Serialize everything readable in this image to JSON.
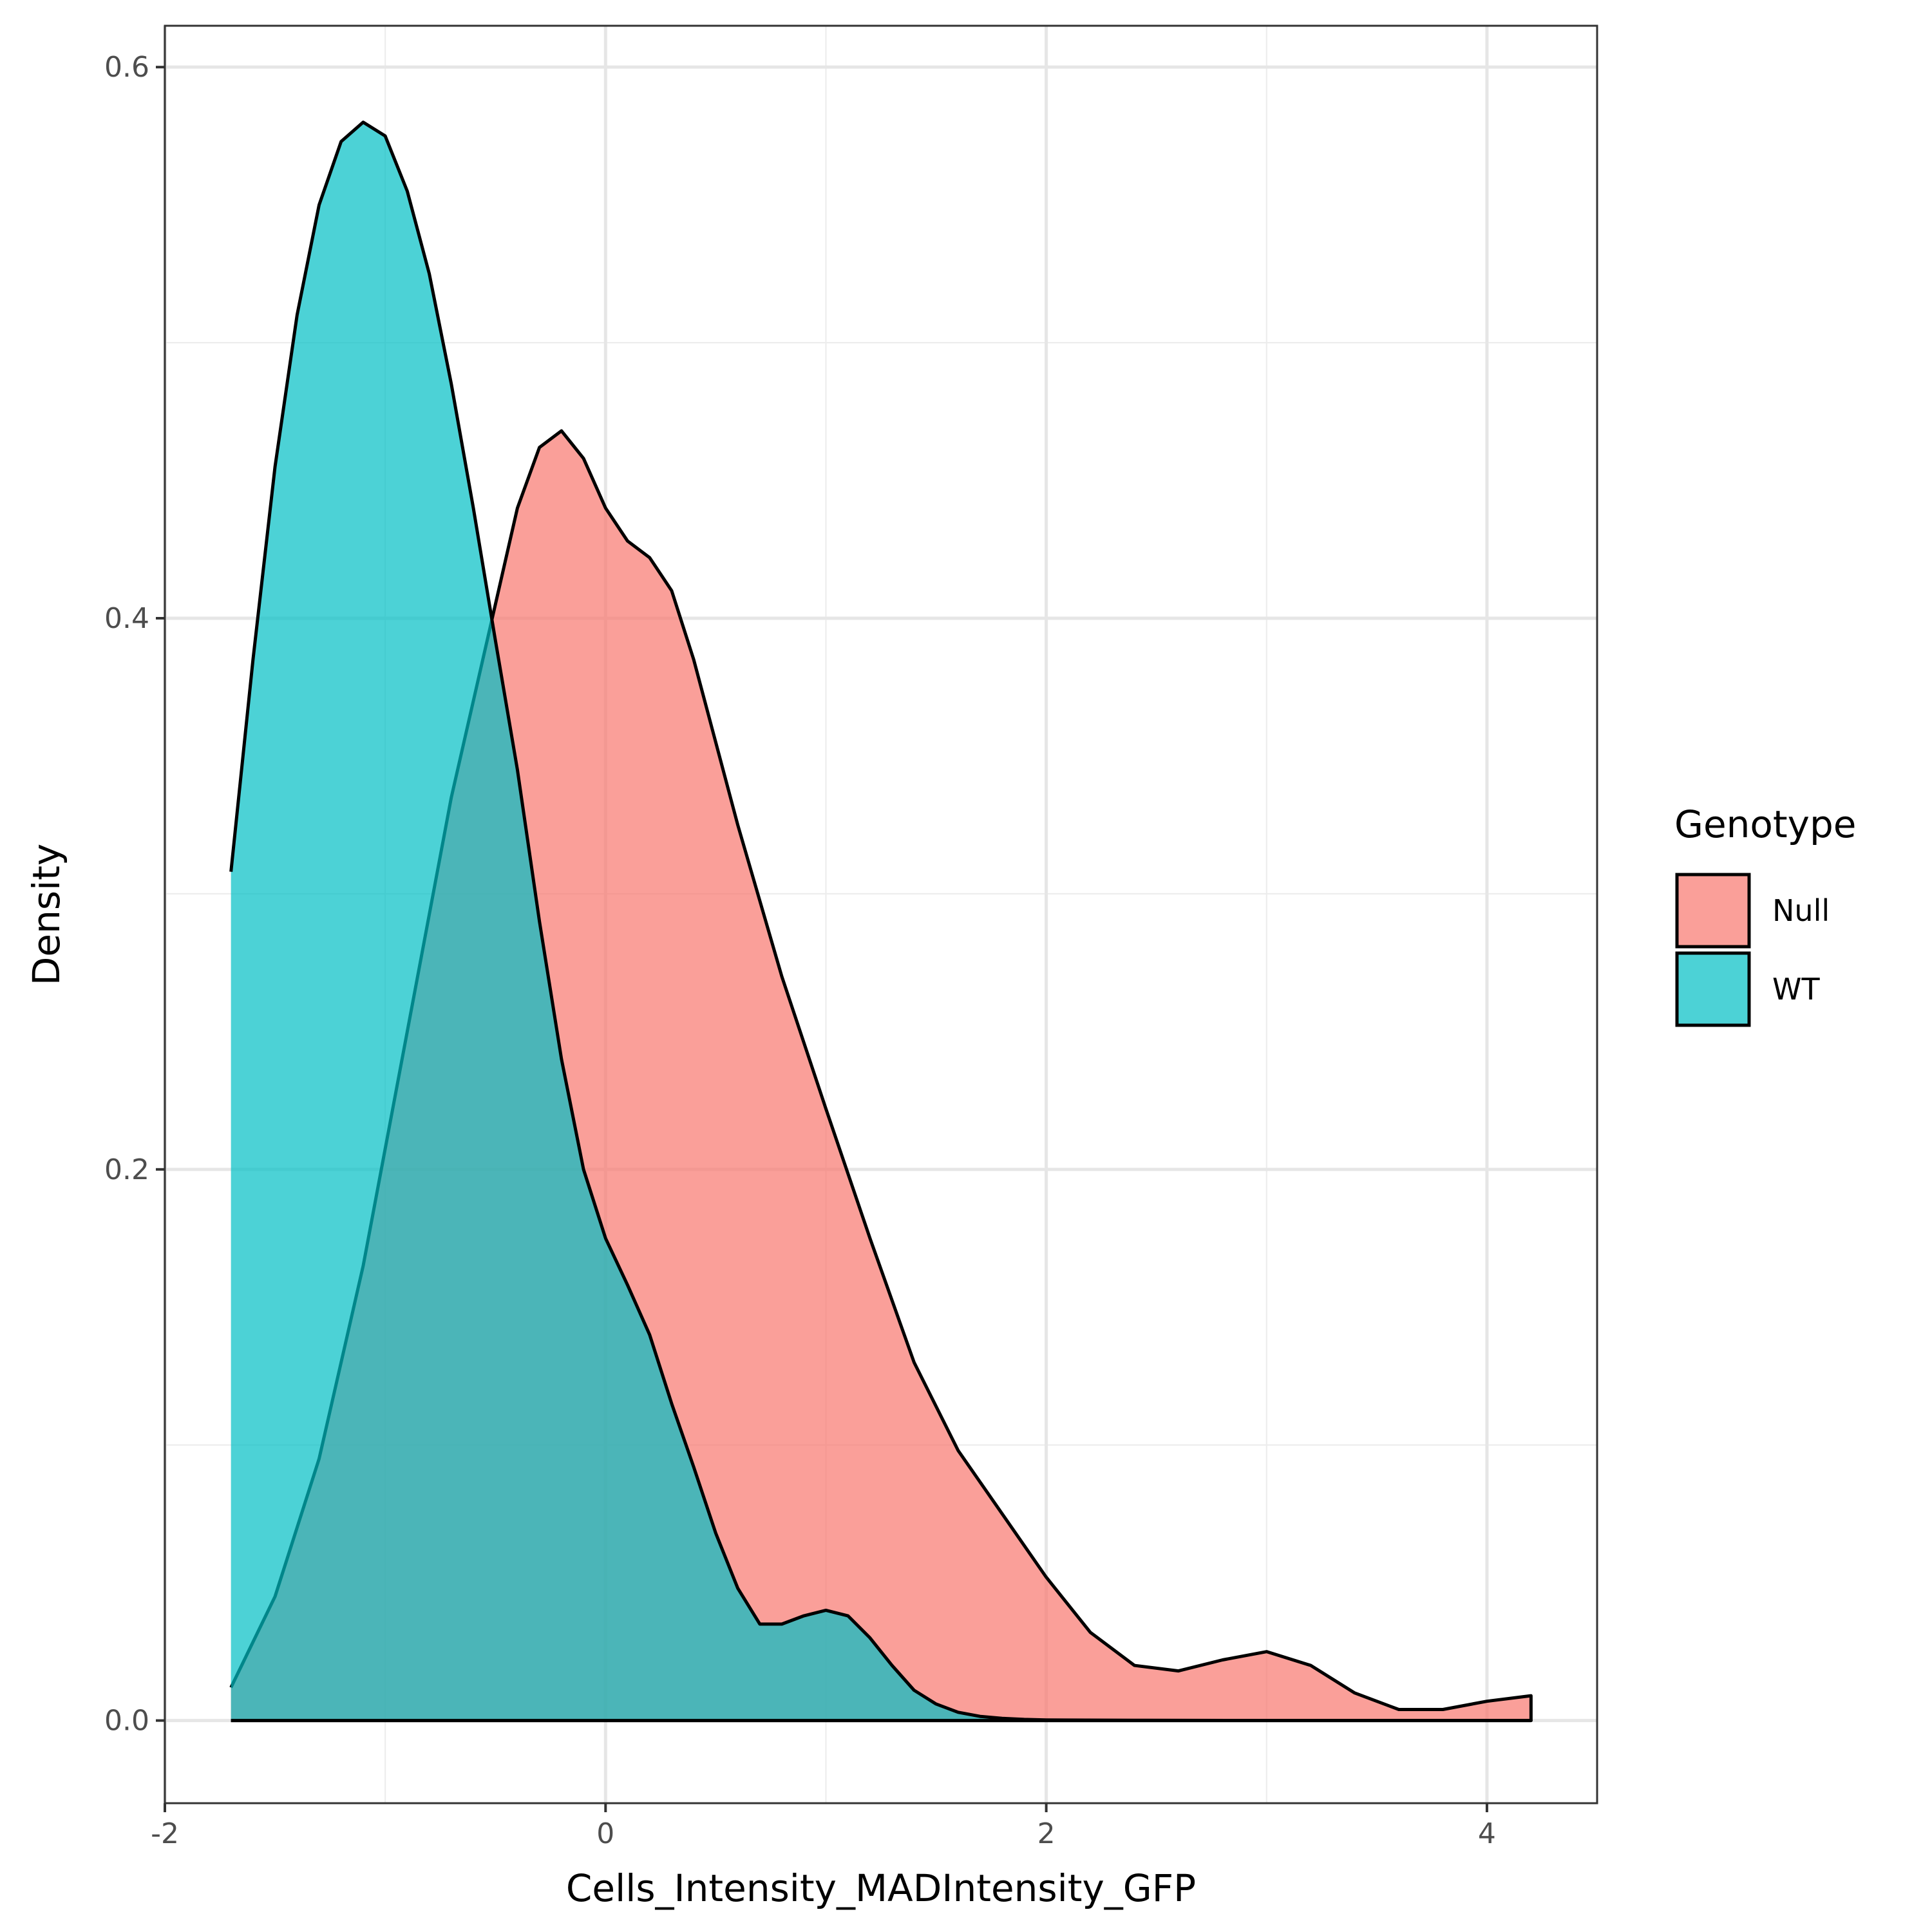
{
  "chart_data": {
    "type": "area",
    "xlabel": "Cells_Intensity_MADIntensity_GFP",
    "ylabel": "Density",
    "xlim": [
      -2.0,
      4.5
    ],
    "ylim": [
      -0.03,
      0.615
    ],
    "x_ticks": [
      {
        "value": -2,
        "label": "-2"
      },
      {
        "value": 0,
        "label": "0"
      },
      {
        "value": 2,
        "label": "2"
      },
      {
        "value": 4,
        "label": "4"
      }
    ],
    "y_ticks": [
      {
        "value": 0.0,
        "label": "0.0"
      },
      {
        "value": 0.2,
        "label": "0.2"
      },
      {
        "value": 0.4,
        "label": "0.4"
      },
      {
        "value": 0.6,
        "label": "0.6"
      }
    ],
    "x_minor": [
      -1,
      1,
      3
    ],
    "y_minor": [
      0.1,
      0.3,
      0.5
    ],
    "grid": true,
    "legend": {
      "title": "Genotype",
      "placement": "right"
    },
    "series": [
      {
        "name": "Null",
        "color": "#F8766D",
        "x": [
          -1.7,
          -1.5,
          -1.3,
          -1.1,
          -0.9,
          -0.7,
          -0.5,
          -0.4,
          -0.3,
          -0.2,
          -0.1,
          0.0,
          0.1,
          0.2,
          0.3,
          0.4,
          0.5,
          0.6,
          0.8,
          1.0,
          1.2,
          1.4,
          1.6,
          1.8,
          2.0,
          2.2,
          2.4,
          2.6,
          2.8,
          3.0,
          3.2,
          3.4,
          3.6,
          3.8,
          4.0,
          4.2
        ],
        "y": [
          0.012,
          0.045,
          0.095,
          0.165,
          0.25,
          0.335,
          0.405,
          0.44,
          0.462,
          0.468,
          0.458,
          0.44,
          0.428,
          0.422,
          0.41,
          0.385,
          0.355,
          0.325,
          0.27,
          0.222,
          0.175,
          0.13,
          0.098,
          0.075,
          0.052,
          0.032,
          0.02,
          0.018,
          0.022,
          0.025,
          0.02,
          0.01,
          0.004,
          0.004,
          0.007,
          0.009
        ]
      },
      {
        "name": "WT",
        "color": "#00BFC4",
        "x": [
          -1.7,
          -1.6,
          -1.5,
          -1.4,
          -1.3,
          -1.2,
          -1.1,
          -1.0,
          -0.9,
          -0.8,
          -0.7,
          -0.6,
          -0.5,
          -0.4,
          -0.3,
          -0.2,
          -0.1,
          0.0,
          0.1,
          0.2,
          0.3,
          0.4,
          0.5,
          0.6,
          0.7,
          0.8,
          0.9,
          1.0,
          1.1,
          1.2,
          1.3,
          1.4,
          1.5,
          1.6,
          1.7,
          1.8,
          1.9,
          2.0,
          2.4,
          3.0,
          3.6,
          4.2
        ],
        "y": [
          0.308,
          0.385,
          0.455,
          0.51,
          0.55,
          0.573,
          0.58,
          0.575,
          0.555,
          0.525,
          0.485,
          0.44,
          0.392,
          0.345,
          0.29,
          0.24,
          0.2,
          0.175,
          0.158,
          0.14,
          0.115,
          0.092,
          0.068,
          0.048,
          0.035,
          0.035,
          0.038,
          0.04,
          0.038,
          0.03,
          0.02,
          0.011,
          0.006,
          0.003,
          0.0015,
          0.0008,
          0.0004,
          0.0002,
          0.0001,
          0.0,
          0.0,
          0.0
        ]
      }
    ]
  }
}
